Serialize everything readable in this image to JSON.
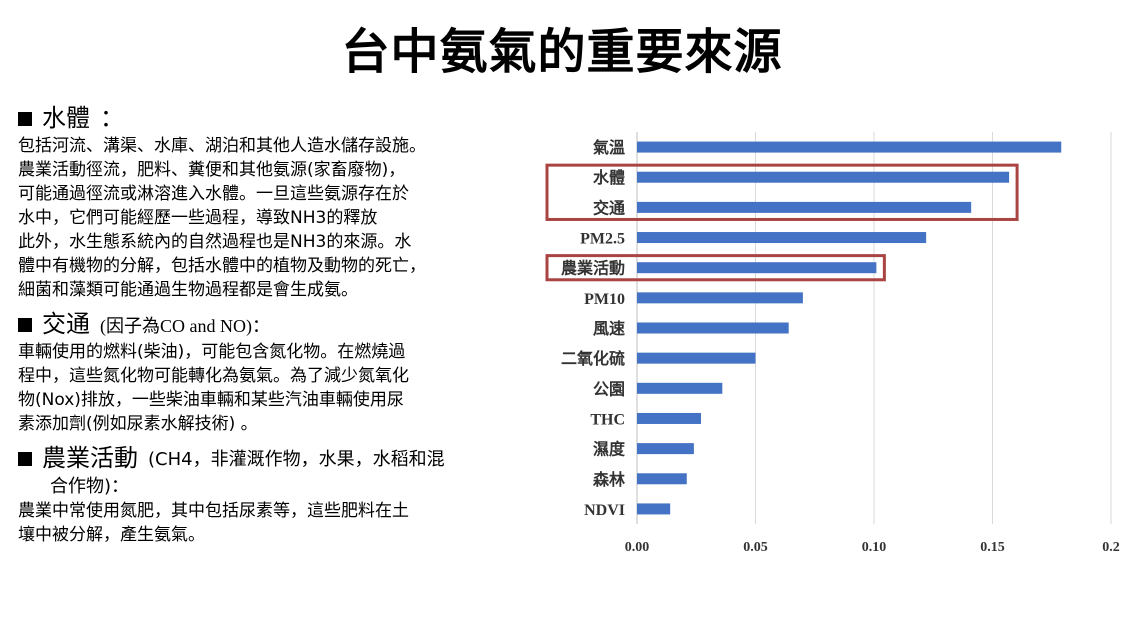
{
  "page": {
    "title": "台中氨氣的重要來源"
  },
  "left": {
    "sections": [
      {
        "heading": "水體",
        "heading_suffix": "：",
        "paragraphs": [
          "包括河流、溝渠、水庫、湖泊和其他人造水儲存設施。",
          "農業活動徑流，肥料、糞便和其他氨源(家畜廢物)，",
          "可能通過徑流或淋溶進入水體。一旦這些氨源存在於",
          "水中，它們可能經歷一些過程，導致NH3的釋放",
          "此外，水生態系統內的自然過程也是NH3的來源。水",
          "體中有機物的分解，包括水體中的植物及動物的死亡，",
          "細菌和藻類可能通過生物過程都是會生成氨。"
        ]
      },
      {
        "heading": "交通",
        "heading_note": "(因子為CO and NO)：",
        "paragraphs": [
          "車輛使用的燃料(柴油)，可能包含氮化物。在燃燒過",
          "程中，這些氮化物可能轉化為氨氣。為了減少氮氧化",
          "物(Nox)排放，一些柴油車輛和某些汽油車輛使用尿",
          "素添加劑(例如尿素水解技術) 。"
        ]
      },
      {
        "heading": "農業活動",
        "heading_note": "(CH4，非灌溉作物，水果，水稻和混",
        "heading_note_line2": "合作物)：",
        "paragraphs": [
          "農業中常使用氮肥，其中包括尿素等，這些肥料在土",
          "壤中被分解，產生氨氣。"
        ]
      }
    ]
  },
  "chart_data": {
    "type": "bar",
    "orientation": "horizontal",
    "categories": [
      "氣溫",
      "水體",
      "交通",
      "PM2.5",
      "農業活動",
      "PM10",
      "風速",
      "二氧化硫",
      "公園",
      "THC",
      "濕度",
      "森林",
      "NDVI"
    ],
    "values": [
      0.179,
      0.157,
      0.141,
      0.122,
      0.101,
      0.07,
      0.064,
      0.05,
      0.036,
      0.027,
      0.024,
      0.021,
      0.014
    ],
    "xlim": [
      0,
      0.2
    ],
    "xticks": [
      "0.00",
      "0.05",
      "0.10",
      "0.15",
      "0.2"
    ],
    "grid": true,
    "bar_color": "#4472C4",
    "highlight_color": "#A94442",
    "highlight_groups": [
      [
        "水體",
        "交通"
      ],
      [
        "農業活動"
      ]
    ]
  }
}
